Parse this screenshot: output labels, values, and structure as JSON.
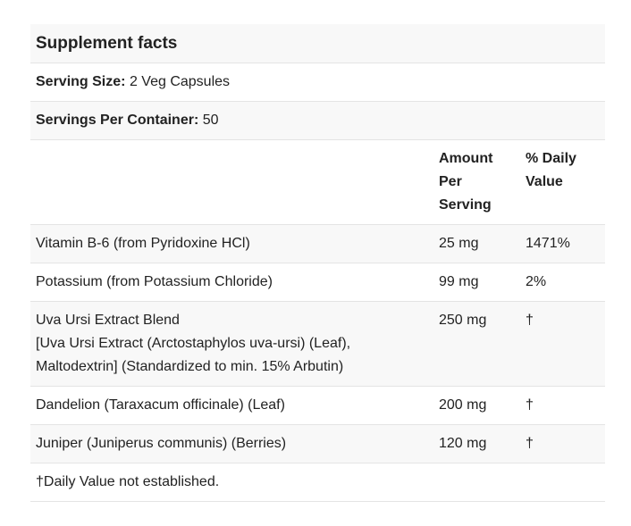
{
  "title": "Supplement facts",
  "serving_size": {
    "label": "Serving Size:",
    "value": "2 Veg Capsules"
  },
  "servings_per_container": {
    "label": "Servings Per Container:",
    "value": "50"
  },
  "table": {
    "headers": {
      "amount": "Amount Per Serving",
      "daily_value": "% Daily Value"
    },
    "rows": [
      {
        "name": "Vitamin B-6 (from Pyridoxine HCl)",
        "amount": "25 mg",
        "daily_value": "1471%"
      },
      {
        "name": "Potassium (from Potassium Chloride)",
        "amount": "99 mg",
        "daily_value": "2%"
      },
      {
        "name": "Uva Ursi Extract Blend",
        "detail": "[Uva Ursi Extract (Arctostaphylos uva-ursi) (Leaf), Maltodextrin] (Standardized to min. 15% Arbutin)",
        "amount": "250 mg",
        "daily_value": "†"
      },
      {
        "name": "Dandelion (Taraxacum officinale) (Leaf)",
        "amount": "200 mg",
        "daily_value": "†"
      },
      {
        "name": "Juniper (Juniperus communis) (Berries)",
        "amount": "120 mg",
        "daily_value": "†"
      }
    ]
  },
  "footnote": "†Daily Value not established."
}
